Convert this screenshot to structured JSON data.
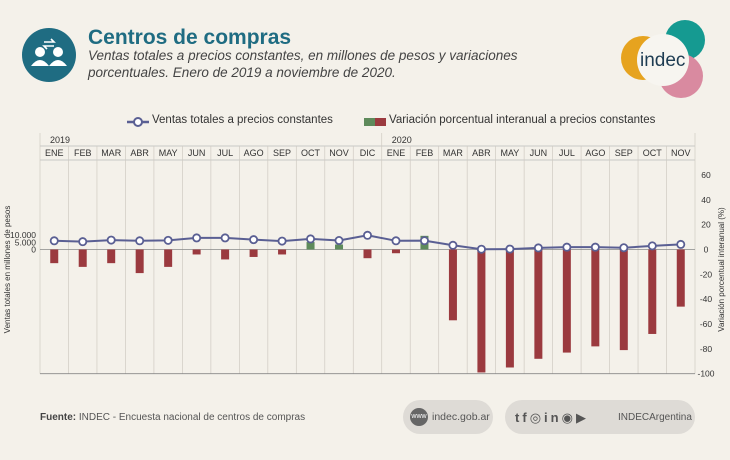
{
  "header": {
    "title": "Centros de compras",
    "subtitle": "Ventas totales a precios constantes, en millones de pesos y variaciones porcentuales. Enero de 2019 a noviembre de 2020.",
    "logo_text": "indec",
    "icon": "people-exchange-icon"
  },
  "footer": {
    "source_label": "Fuente:",
    "source_text": "INDEC - Encuesta nacional de centros de compras",
    "website": "indec.gob.ar",
    "social_handle": "INDECArgentina",
    "social_icons": [
      "twitter-icon",
      "facebook-icon",
      "instagram-icon",
      "linkedin-icon",
      "spotify-icon",
      "youtube-icon"
    ]
  },
  "chart_data": {
    "type": "bar",
    "title": "",
    "year_labels": [
      {
        "label": "2019",
        "index": 0
      },
      {
        "label": "2020",
        "index": 12
      }
    ],
    "categories": [
      "ENE",
      "FEB",
      "MAR",
      "ABR",
      "MAY",
      "JUN",
      "JUL",
      "AGO",
      "SEP",
      "OCT",
      "NOV",
      "DIC",
      "ENE",
      "FEB",
      "MAR",
      "ABR",
      "MAY",
      "JUN",
      "JUL",
      "AGO",
      "SEP",
      "OCT",
      "NOV"
    ],
    "series": [
      {
        "name": "Ventas totales a precios constantes",
        "type": "line",
        "axis": "left",
        "color": "#5a5f93",
        "values": [
          6000,
          5400,
          6500,
          6000,
          6300,
          8000,
          8000,
          6800,
          5800,
          7300,
          6200,
          9800,
          6000,
          6100,
          2900,
          200,
          300,
          1100,
          1600,
          1600,
          1200,
          2500,
          3500
        ]
      },
      {
        "name": "Variación porcentual interanual a precios constantes",
        "type": "bar",
        "axis": "right",
        "positive_color": "#5e8a5b",
        "negative_color": "#9b3a3f",
        "values": [
          -11,
          -14,
          -11,
          -19,
          -14,
          -4,
          -8,
          -6,
          -4,
          6,
          4,
          -7,
          -3,
          11,
          -57,
          -99,
          -95,
          -88,
          -83,
          -78,
          -81,
          -68,
          -46
        ]
      }
    ],
    "ylabel": "Ventas totales en millones de pesos",
    "y2label": "Variación porcentual interanual (%)",
    "y_ticks": [
      "10.000",
      "5.000",
      "0"
    ],
    "y_tick_values": [
      10000,
      5000,
      0
    ],
    "y2_ticks": [
      "60",
      "40",
      "20",
      "0",
      "-20",
      "-40",
      "-60",
      "-80",
      "-100"
    ],
    "y2_tick_values": [
      60,
      40,
      20,
      0,
      -20,
      -40,
      -60,
      -80,
      -100
    ],
    "ylim_right": [
      -100,
      60
    ],
    "legend_position": "top"
  }
}
